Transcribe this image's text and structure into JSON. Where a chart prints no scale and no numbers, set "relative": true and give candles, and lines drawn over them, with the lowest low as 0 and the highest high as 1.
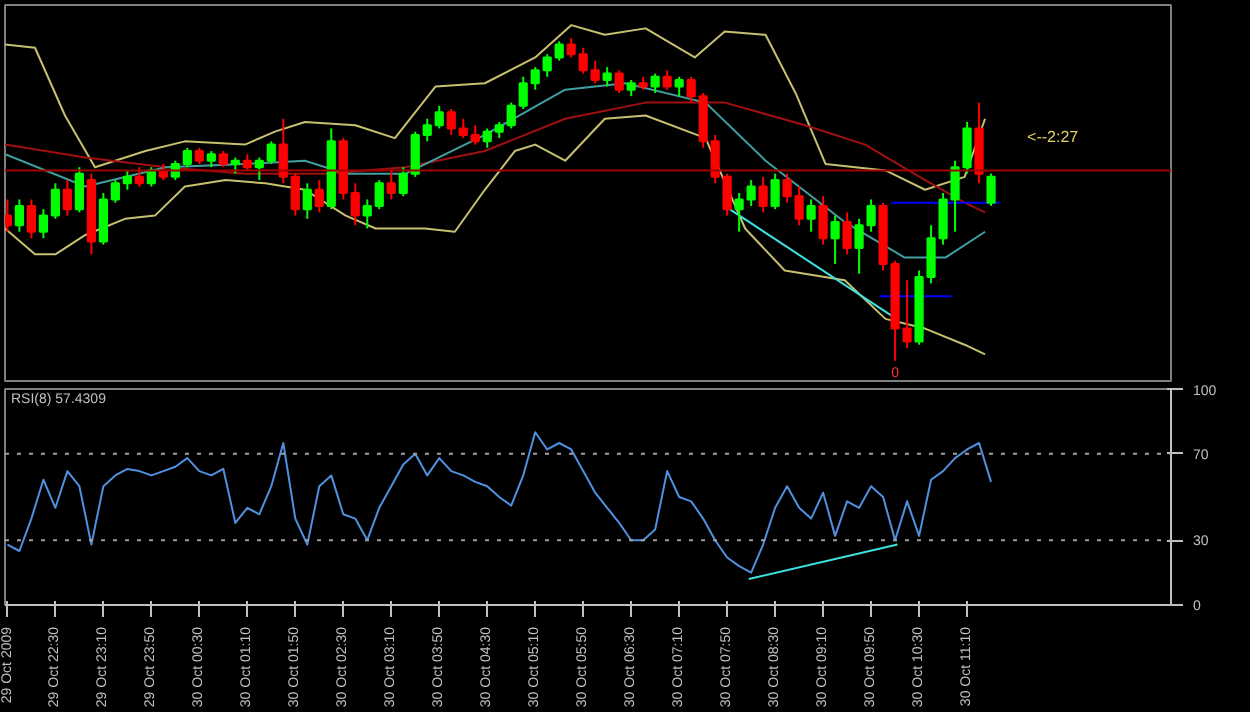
{
  "chart_data": [
    {
      "type": "candlestick",
      "relative": true,
      "grid": false,
      "xlim": [
        "2009-10-29T21:48",
        "2009-10-30T14:00"
      ],
      "x": [
        "2009-10-29T21:50",
        "2009-10-29T22:00",
        "2009-10-29T22:10",
        "2009-10-29T22:20",
        "2009-10-29T22:30",
        "2009-10-29T22:40",
        "2009-10-29T22:50",
        "2009-10-29T23:00",
        "2009-10-29T23:10",
        "2009-10-29T23:20",
        "2009-10-29T23:30",
        "2009-10-29T23:40",
        "2009-10-29T23:50",
        "2009-10-30T00:00",
        "2009-10-30T00:10",
        "2009-10-30T00:20",
        "2009-10-30T00:30",
        "2009-10-30T00:40",
        "2009-10-30T00:50",
        "2009-10-30T01:00",
        "2009-10-30T01:10",
        "2009-10-30T01:20",
        "2009-10-30T01:30",
        "2009-10-30T01:40",
        "2009-10-30T01:50",
        "2009-10-30T02:00",
        "2009-10-30T02:10",
        "2009-10-30T02:20",
        "2009-10-30T02:30",
        "2009-10-30T02:40",
        "2009-10-30T02:50",
        "2009-10-30T03:00",
        "2009-10-30T03:10",
        "2009-10-30T03:20",
        "2009-10-30T03:30",
        "2009-10-30T03:40",
        "2009-10-30T03:50",
        "2009-10-30T04:00",
        "2009-10-30T04:10",
        "2009-10-30T04:20",
        "2009-10-30T04:30",
        "2009-10-30T04:40",
        "2009-10-30T04:50",
        "2009-10-30T05:00",
        "2009-10-30T05:10",
        "2009-10-30T05:20",
        "2009-10-30T05:30",
        "2009-10-30T05:40",
        "2009-10-30T05:50",
        "2009-10-30T06:00",
        "2009-10-30T06:10",
        "2009-10-30T06:20",
        "2009-10-30T06:30",
        "2009-10-30T06:40",
        "2009-10-30T06:50",
        "2009-10-30T07:00",
        "2009-10-30T07:10",
        "2009-10-30T07:20",
        "2009-10-30T07:30",
        "2009-10-30T07:40",
        "2009-10-30T07:50",
        "2009-10-30T08:00",
        "2009-10-30T08:10",
        "2009-10-30T08:20",
        "2009-10-30T08:30",
        "2009-10-30T08:40",
        "2009-10-30T08:50",
        "2009-10-30T09:00",
        "2009-10-30T09:10",
        "2009-10-30T09:20",
        "2009-10-30T09:30",
        "2009-10-30T09:40",
        "2009-10-30T09:50",
        "2009-10-30T10:00",
        "2009-10-30T10:10",
        "2009-10-30T10:20",
        "2009-10-30T10:30",
        "2009-10-30T10:40",
        "2009-10-30T10:50",
        "2009-10-30T11:00",
        "2009-10-30T11:10",
        "2009-10-30T11:20",
        "2009-10-30T11:30"
      ],
      "ohlc": [
        [
          0.45,
          0.5,
          0.4,
          0.42
        ],
        [
          0.42,
          0.5,
          0.4,
          0.48
        ],
        [
          0.48,
          0.5,
          0.38,
          0.4
        ],
        [
          0.4,
          0.47,
          0.38,
          0.45
        ],
        [
          0.45,
          0.55,
          0.44,
          0.53
        ],
        [
          0.53,
          0.56,
          0.45,
          0.47
        ],
        [
          0.47,
          0.6,
          0.46,
          0.58
        ],
        [
          0.56,
          0.58,
          0.33,
          0.37
        ],
        [
          0.37,
          0.52,
          0.36,
          0.5
        ],
        [
          0.5,
          0.56,
          0.49,
          0.55
        ],
        [
          0.55,
          0.59,
          0.53,
          0.57
        ],
        [
          0.57,
          0.6,
          0.54,
          0.55
        ],
        [
          0.55,
          0.6,
          0.54,
          0.59
        ],
        [
          0.59,
          0.61,
          0.56,
          0.57
        ],
        [
          0.57,
          0.62,
          0.56,
          0.61
        ],
        [
          0.61,
          0.66,
          0.6,
          0.65
        ],
        [
          0.65,
          0.66,
          0.61,
          0.62
        ],
        [
          0.62,
          0.65,
          0.6,
          0.64
        ],
        [
          0.64,
          0.65,
          0.6,
          0.61
        ],
        [
          0.61,
          0.63,
          0.58,
          0.62
        ],
        [
          0.62,
          0.64,
          0.59,
          0.6
        ],
        [
          0.6,
          0.63,
          0.56,
          0.62
        ],
        [
          0.62,
          0.68,
          0.61,
          0.67
        ],
        [
          0.67,
          0.75,
          0.55,
          0.57
        ],
        [
          0.57,
          0.58,
          0.45,
          0.47
        ],
        [
          0.47,
          0.55,
          0.44,
          0.53
        ],
        [
          0.53,
          0.56,
          0.46,
          0.48
        ],
        [
          0.48,
          0.72,
          0.47,
          0.68
        ],
        [
          0.68,
          0.69,
          0.5,
          0.52
        ],
        [
          0.52,
          0.55,
          0.42,
          0.45
        ],
        [
          0.45,
          0.5,
          0.41,
          0.48
        ],
        [
          0.48,
          0.56,
          0.47,
          0.55
        ],
        [
          0.55,
          0.59,
          0.5,
          0.52
        ],
        [
          0.52,
          0.6,
          0.51,
          0.58
        ],
        [
          0.58,
          0.71,
          0.57,
          0.7
        ],
        [
          0.7,
          0.75,
          0.68,
          0.73
        ],
        [
          0.73,
          0.79,
          0.72,
          0.77
        ],
        [
          0.77,
          0.78,
          0.7,
          0.72
        ],
        [
          0.72,
          0.75,
          0.69,
          0.7
        ],
        [
          0.7,
          0.73,
          0.67,
          0.68
        ],
        [
          0.68,
          0.72,
          0.66,
          0.71
        ],
        [
          0.71,
          0.74,
          0.69,
          0.73
        ],
        [
          0.73,
          0.8,
          0.72,
          0.79
        ],
        [
          0.79,
          0.88,
          0.78,
          0.86
        ],
        [
          0.86,
          0.91,
          0.84,
          0.9
        ],
        [
          0.9,
          0.95,
          0.88,
          0.94
        ],
        [
          0.94,
          0.99,
          0.93,
          0.98
        ],
        [
          0.98,
          1.0,
          0.94,
          0.95
        ],
        [
          0.95,
          0.97,
          0.89,
          0.9
        ],
        [
          0.9,
          0.93,
          0.86,
          0.87
        ],
        [
          0.87,
          0.91,
          0.85,
          0.89
        ],
        [
          0.89,
          0.9,
          0.83,
          0.84
        ],
        [
          0.84,
          0.87,
          0.82,
          0.86
        ],
        [
          0.86,
          0.88,
          0.84,
          0.85
        ],
        [
          0.85,
          0.89,
          0.83,
          0.88
        ],
        [
          0.88,
          0.9,
          0.84,
          0.85
        ],
        [
          0.85,
          0.88,
          0.82,
          0.87
        ],
        [
          0.87,
          0.88,
          0.8,
          0.82
        ],
        [
          0.82,
          0.83,
          0.66,
          0.68
        ],
        [
          0.68,
          0.7,
          0.55,
          0.57
        ],
        [
          0.57,
          0.58,
          0.45,
          0.47
        ],
        [
          0.47,
          0.52,
          0.4,
          0.5
        ],
        [
          0.5,
          0.56,
          0.48,
          0.54
        ],
        [
          0.54,
          0.57,
          0.46,
          0.48
        ],
        [
          0.48,
          0.58,
          0.47,
          0.56
        ],
        [
          0.56,
          0.58,
          0.49,
          0.51
        ],
        [
          0.51,
          0.54,
          0.42,
          0.44
        ],
        [
          0.44,
          0.5,
          0.4,
          0.48
        ],
        [
          0.48,
          0.51,
          0.36,
          0.38
        ],
        [
          0.38,
          0.45,
          0.3,
          0.43
        ],
        [
          0.43,
          0.46,
          0.33,
          0.35
        ],
        [
          0.35,
          0.44,
          0.27,
          0.42
        ],
        [
          0.42,
          0.5,
          0.4,
          0.48
        ],
        [
          0.48,
          0.49,
          0.28,
          0.3
        ],
        [
          0.3,
          0.31,
          0.0,
          0.1
        ],
        [
          0.1,
          0.25,
          0.04,
          0.06
        ],
        [
          0.06,
          0.28,
          0.05,
          0.26
        ],
        [
          0.26,
          0.42,
          0.24,
          0.38
        ],
        [
          0.38,
          0.52,
          0.36,
          0.5
        ],
        [
          0.5,
          0.62,
          0.4,
          0.6
        ],
        [
          0.6,
          0.74,
          0.58,
          0.72
        ],
        [
          0.72,
          0.8,
          0.55,
          0.58
        ],
        [
          0.49,
          0.58,
          0.48,
          0.57
        ]
      ],
      "series": [
        {
          "type": "line",
          "color": "#c8c070",
          "x": [
            "2009-10-29T21:48",
            "2009-10-29T22:13",
            "2009-10-29T22:38",
            "2009-10-29T23:03",
            "2009-10-29T23:45",
            "2009-10-30T00:18",
            "2009-10-30T01:08",
            "2009-10-30T01:33",
            "2009-10-30T01:58",
            "2009-10-30T02:40",
            "2009-10-30T03:13",
            "2009-10-30T03:47",
            "2009-10-30T04:28",
            "2009-10-30T05:10",
            "2009-10-30T05:40",
            "2009-10-30T06:08",
            "2009-10-30T06:42",
            "2009-10-30T07:23",
            "2009-10-30T07:48",
            "2009-10-30T08:22",
            "2009-10-30T08:47",
            "2009-10-30T09:12",
            "2009-10-30T10:02",
            "2009-10-30T10:35",
            "2009-10-30T11:08",
            "2009-10-30T11:25"
          ],
          "values": [
            0.98,
            0.97,
            0.76,
            0.6,
            0.65,
            0.68,
            0.67,
            0.71,
            0.74,
            0.73,
            0.69,
            0.85,
            0.86,
            0.94,
            1.04,
            1.01,
            1.03,
            0.94,
            1.02,
            1.01,
            0.83,
            0.61,
            0.59,
            0.53,
            0.57,
            0.75
          ]
        },
        {
          "type": "line",
          "color": "#c8c070",
          "x": [
            "2009-10-29T21:48",
            "2009-10-29T22:13",
            "2009-10-29T22:30",
            "2009-10-29T22:55",
            "2009-10-29T23:28",
            "2009-10-29T23:53",
            "2009-10-30T00:18",
            "2009-10-30T00:52",
            "2009-10-30T01:25",
            "2009-10-30T01:58",
            "2009-10-30T02:32",
            "2009-10-30T02:57",
            "2009-10-30T03:38",
            "2009-10-30T04:03",
            "2009-10-30T04:28",
            "2009-10-30T04:53",
            "2009-10-30T05:10",
            "2009-10-30T05:35",
            "2009-10-30T06:08",
            "2009-10-30T06:42",
            "2009-10-30T07:32",
            "2009-10-30T08:05",
            "2009-10-30T08:38",
            "2009-10-30T09:28",
            "2009-10-30T10:02",
            "2009-10-30T10:35",
            "2009-10-30T11:08",
            "2009-10-30T11:25"
          ],
          "values": [
            0.41,
            0.33,
            0.33,
            0.39,
            0.44,
            0.45,
            0.54,
            0.56,
            0.55,
            0.53,
            0.45,
            0.41,
            0.41,
            0.4,
            0.53,
            0.65,
            0.67,
            0.62,
            0.75,
            0.76,
            0.69,
            0.41,
            0.28,
            0.25,
            0.13,
            0.1,
            0.05,
            0.02
          ]
        },
        {
          "type": "line",
          "color": "#a01010",
          "x": [
            "2009-10-29T21:48",
            "2009-10-29T22:55",
            "2009-10-30T00:02",
            "2009-10-30T01:08",
            "2009-10-30T02:15",
            "2009-10-30T03:22",
            "2009-10-30T04:28",
            "2009-10-30T05:35",
            "2009-10-30T06:42",
            "2009-10-30T07:48",
            "2009-10-30T08:55",
            "2009-10-30T09:45",
            "2009-10-30T10:35",
            "2009-10-30T11:08",
            "2009-10-30T11:25"
          ],
          "values": [
            0.67,
            0.63,
            0.6,
            0.58,
            0.58,
            0.6,
            0.65,
            0.75,
            0.8,
            0.8,
            0.73,
            0.67,
            0.56,
            0.49,
            0.46
          ]
        },
        {
          "type": "line",
          "color": "#40a0a0",
          "x": [
            "2009-10-29T21:48",
            "2009-10-29T22:55",
            "2009-10-30T00:02",
            "2009-10-30T01:08",
            "2009-10-30T01:58",
            "2009-10-30T02:32",
            "2009-10-30T03:22",
            "2009-10-30T04:28",
            "2009-10-30T05:35",
            "2009-10-30T06:25",
            "2009-10-30T07:32",
            "2009-10-30T08:22",
            "2009-10-30T09:28",
            "2009-10-30T10:18",
            "2009-10-30T10:52",
            "2009-10-30T11:25"
          ],
          "values": [
            0.64,
            0.54,
            0.6,
            0.61,
            0.62,
            0.58,
            0.58,
            0.7,
            0.84,
            0.86,
            0.8,
            0.62,
            0.43,
            0.32,
            0.32,
            0.4
          ]
        },
        {
          "type": "line",
          "color": "#40e0e0",
          "x": [
            "2009-10-30T07:52",
            "2009-10-30T10:07"
          ],
          "values": [
            0.47,
            0.14
          ]
        },
        {
          "type": "line",
          "color": "#0000ff",
          "x": [
            "2009-10-30T10:07",
            "2009-10-30T11:37"
          ],
          "values": [
            0.49,
            0.49
          ]
        },
        {
          "type": "line",
          "color": "#0000ff",
          "x": [
            "2009-10-30T09:57",
            "2009-10-30T10:57"
          ],
          "values": [
            0.2,
            0.2
          ]
        }
      ],
      "ref_lines": [
        {
          "axis": "y",
          "value": 0.59,
          "color": "#a00000"
        }
      ],
      "annotations": [
        "<--2:27",
        "0"
      ]
    },
    {
      "type": "line",
      "grid": false,
      "marker": "none",
      "annotations": [
        "RSI(8) 57.4309"
      ],
      "xlim": [
        "2009-10-29T21:48",
        "2009-10-30T14:00"
      ],
      "ylim": [
        0,
        100
      ],
      "yticks": [
        0,
        30,
        70,
        100
      ],
      "xticks": [
        {
          "value": "2009-10-29T21:50",
          "label": "29 Oct 2009"
        },
        {
          "value": "2009-10-29T22:30",
          "label": "29 Oct 22:30"
        },
        {
          "value": "2009-10-29T23:10",
          "label": "29 Oct 23:10"
        },
        {
          "value": "2009-10-29T23:50",
          "label": "29 Oct 23:50"
        },
        {
          "value": "2009-10-30T00:30",
          "label": "30 Oct 00:30"
        },
        {
          "value": "2009-10-30T01:10",
          "label": "30 Oct 01:10"
        },
        {
          "value": "2009-10-30T01:50",
          "label": "30 Oct 01:50"
        },
        {
          "value": "2009-10-30T02:30",
          "label": "30 Oct 02:30"
        },
        {
          "value": "2009-10-30T03:10",
          "label": "30 Oct 03:10"
        },
        {
          "value": "2009-10-30T03:50",
          "label": "30 Oct 03:50"
        },
        {
          "value": "2009-10-30T04:30",
          "label": "30 Oct 04:30"
        },
        {
          "value": "2009-10-30T05:10",
          "label": "30 Oct 05:10"
        },
        {
          "value": "2009-10-30T05:50",
          "label": "30 Oct 05:50"
        },
        {
          "value": "2009-10-30T06:30",
          "label": "30 Oct 06:30"
        },
        {
          "value": "2009-10-30T07:10",
          "label": "30 Oct 07:10"
        },
        {
          "value": "2009-10-30T07:50",
          "label": "30 Oct 07:50"
        },
        {
          "value": "2009-10-30T08:30",
          "label": "30 Oct 08:30"
        },
        {
          "value": "2009-10-30T09:10",
          "label": "30 Oct 09:10"
        },
        {
          "value": "2009-10-30T09:50",
          "label": "30 Oct 09:50"
        },
        {
          "value": "2009-10-30T10:30",
          "label": "30 Oct 10:30"
        },
        {
          "value": "2009-10-30T11:10",
          "label": "30 Oct 11:10"
        }
      ],
      "series": [
        {
          "color": "#5090e0",
          "x": [
            "2009-10-29T21:50",
            "2009-10-29T22:00",
            "2009-10-29T22:10",
            "2009-10-29T22:20",
            "2009-10-29T22:30",
            "2009-10-29T22:40",
            "2009-10-29T22:50",
            "2009-10-29T23:00",
            "2009-10-29T23:10",
            "2009-10-29T23:20",
            "2009-10-29T23:30",
            "2009-10-29T23:40",
            "2009-10-29T23:50",
            "2009-10-30T00:00",
            "2009-10-30T00:10",
            "2009-10-30T00:20",
            "2009-10-30T00:30",
            "2009-10-30T00:40",
            "2009-10-30T00:50",
            "2009-10-30T01:00",
            "2009-10-30T01:10",
            "2009-10-30T01:20",
            "2009-10-30T01:30",
            "2009-10-30T01:40",
            "2009-10-30T01:50",
            "2009-10-30T02:00",
            "2009-10-30T02:10",
            "2009-10-30T02:20",
            "2009-10-30T02:30",
            "2009-10-30T02:40",
            "2009-10-30T02:50",
            "2009-10-30T03:00",
            "2009-10-30T03:10",
            "2009-10-30T03:20",
            "2009-10-30T03:30",
            "2009-10-30T03:40",
            "2009-10-30T03:50",
            "2009-10-30T04:00",
            "2009-10-30T04:10",
            "2009-10-30T04:20",
            "2009-10-30T04:30",
            "2009-10-30T04:40",
            "2009-10-30T04:50",
            "2009-10-30T05:00",
            "2009-10-30T05:10",
            "2009-10-30T05:20",
            "2009-10-30T05:30",
            "2009-10-30T05:40",
            "2009-10-30T05:50",
            "2009-10-30T06:00",
            "2009-10-30T06:10",
            "2009-10-30T06:20",
            "2009-10-30T06:30",
            "2009-10-30T06:40",
            "2009-10-30T06:50",
            "2009-10-30T07:00",
            "2009-10-30T07:10",
            "2009-10-30T07:20",
            "2009-10-30T07:30",
            "2009-10-30T07:40",
            "2009-10-30T07:50",
            "2009-10-30T08:00",
            "2009-10-30T08:10",
            "2009-10-30T08:20",
            "2009-10-30T08:30",
            "2009-10-30T08:40",
            "2009-10-30T08:50",
            "2009-10-30T09:00",
            "2009-10-30T09:10",
            "2009-10-30T09:20",
            "2009-10-30T09:30",
            "2009-10-30T09:40",
            "2009-10-30T09:50",
            "2009-10-30T10:00",
            "2009-10-30T10:10",
            "2009-10-30T10:20",
            "2009-10-30T10:30",
            "2009-10-30T10:40",
            "2009-10-30T10:50",
            "2009-10-30T11:00",
            "2009-10-30T11:10",
            "2009-10-30T11:20",
            "2009-10-30T11:30"
          ],
          "values": [
            28,
            25,
            40,
            58,
            45,
            62,
            55,
            28,
            55,
            60,
            63,
            62,
            60,
            62,
            64,
            68,
            62,
            60,
            63,
            38,
            45,
            42,
            55,
            75,
            40,
            28,
            55,
            60,
            42,
            40,
            30,
            45,
            55,
            65,
            70,
            60,
            68,
            62,
            60,
            57,
            55,
            50,
            46,
            60,
            80,
            72,
            75,
            72,
            62,
            52,
            45,
            38,
            30,
            30,
            35,
            62,
            50,
            48,
            40,
            30,
            22,
            18,
            15,
            28,
            45,
            55,
            45,
            40,
            52,
            32,
            48,
            45,
            55,
            50,
            30,
            48,
            32,
            58,
            62,
            68,
            72,
            75,
            57
          ]
        },
        {
          "color": "#40e0e0",
          "x": [
            "2009-10-30T08:08",
            "2009-10-30T10:12"
          ],
          "values": [
            12,
            28
          ]
        }
      ],
      "ref_lines": [
        {
          "axis": "y",
          "value": 30,
          "line_style": "dotted",
          "color": "#a0a0a0"
        },
        {
          "axis": "y",
          "value": 70,
          "line_style": "dotted",
          "color": "#a0a0a0"
        }
      ]
    }
  ]
}
